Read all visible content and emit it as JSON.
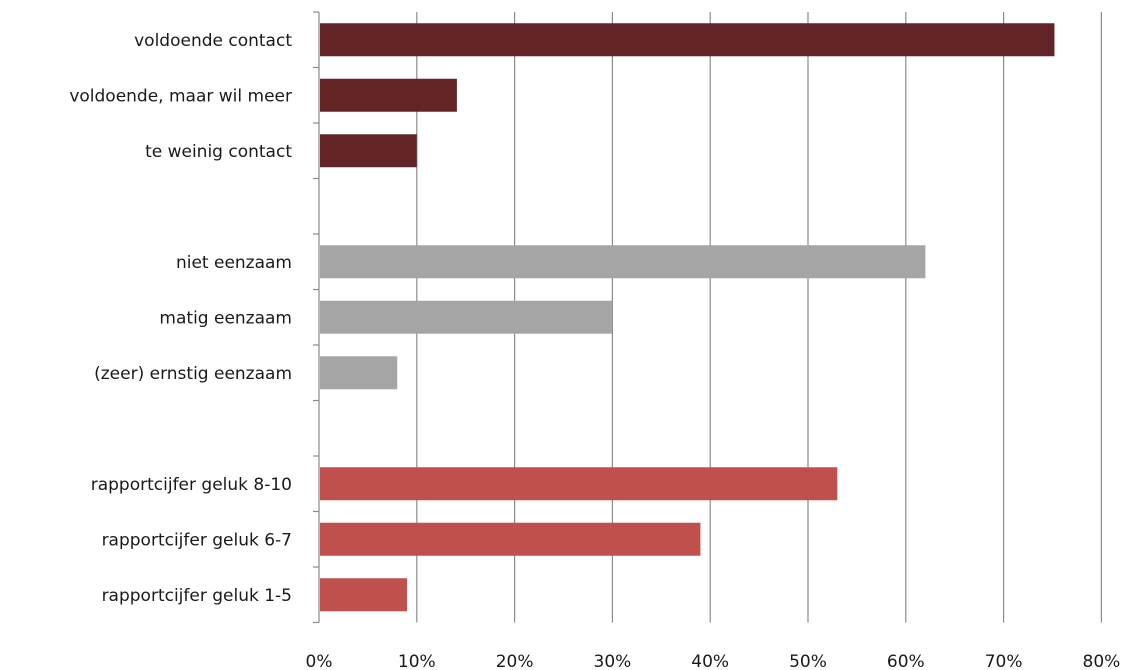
{
  "chart_data": {
    "type": "bar",
    "orientation": "horizontal",
    "title": "",
    "xlabel": "",
    "ylabel": "",
    "xlim": [
      0,
      80
    ],
    "x_ticks": [
      "0%",
      "10%",
      "20%",
      "30%",
      "40%",
      "50%",
      "60%",
      "70%",
      "80%"
    ],
    "grid": true,
    "legend": "none",
    "categories": [
      "voldoende contact",
      "voldoende, maar wil meer",
      "te weinig contact",
      "",
      "niet eenzaam",
      "matig eenzaam",
      "(zeer) ernstig eenzaam",
      "",
      "rapportcijfer geluk 8-10",
      "rapportcijfer geluk 6-7",
      "rapportcijfer geluk 1-5"
    ],
    "values": [
      75.2,
      14.1,
      10.0,
      null,
      62.0,
      30.0,
      8.0,
      null,
      53.0,
      39.0,
      9.0
    ],
    "colors": [
      "#632427",
      "#632427",
      "#632427",
      null,
      "#a5a5a5",
      "#a5a5a5",
      "#a5a5a5",
      null,
      "#c0504d",
      "#c0504d",
      "#c0504d"
    ]
  }
}
